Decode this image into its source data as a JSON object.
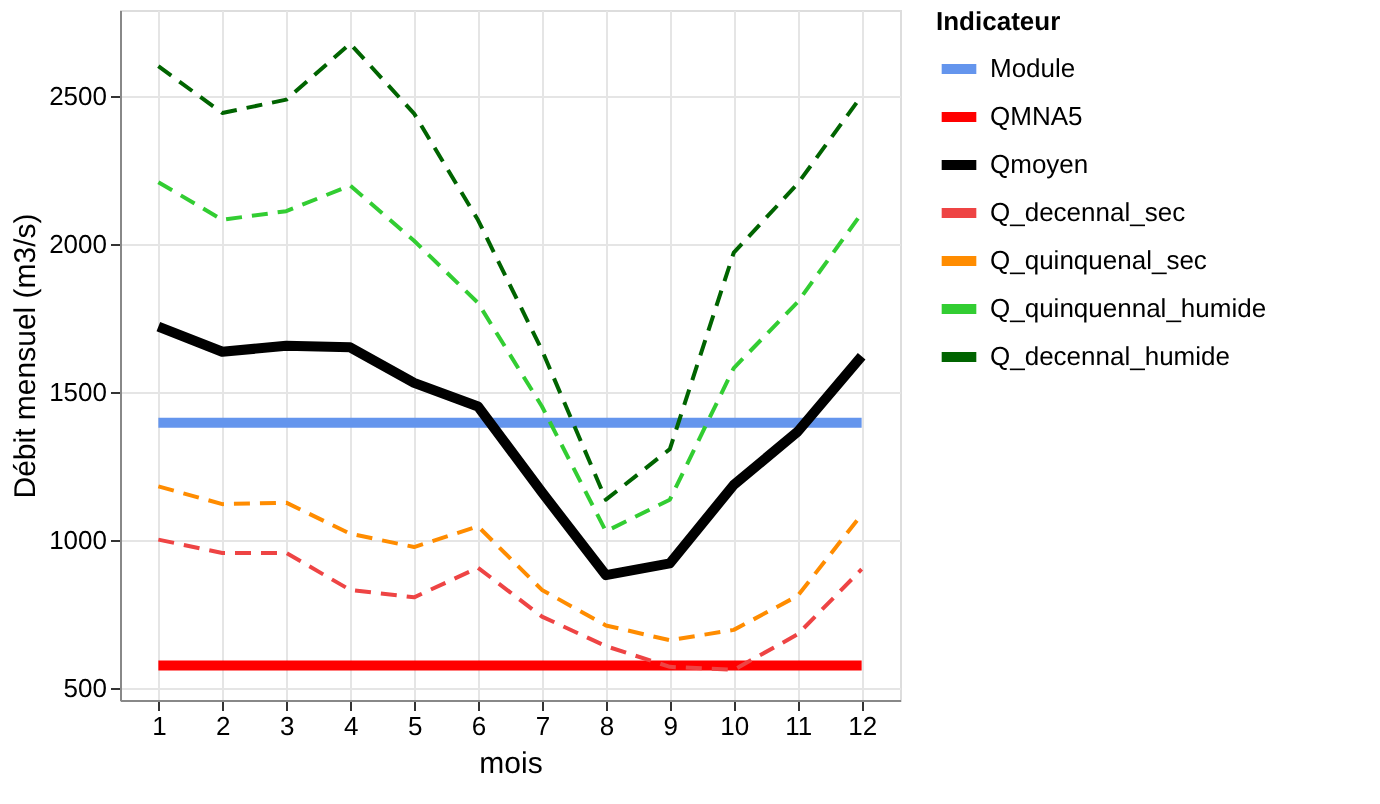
{
  "chart_data": {
    "type": "line",
    "xlabel": "mois",
    "ylabel": "Débit mensuel (m3/s)",
    "legend_title": "Indicateur",
    "legend": "right",
    "grid": true,
    "x": [
      1,
      2,
      3,
      4,
      5,
      6,
      7,
      8,
      9,
      10,
      11,
      12
    ],
    "xlim": [
      0.4,
      12.6
    ],
    "xticks": [
      1,
      2,
      3,
      4,
      5,
      6,
      7,
      8,
      9,
      10,
      11,
      12
    ],
    "ylim": [
      458,
      2790
    ],
    "yticks": [
      500,
      1000,
      1500,
      2000,
      2500
    ],
    "series": [
      {
        "name": "Module",
        "color": "#6495ed",
        "line_style": "solid",
        "values": [
          1395,
          1395,
          1395,
          1395,
          1395,
          1395,
          1395,
          1395,
          1395,
          1395,
          1395,
          1395
        ]
      },
      {
        "name": "QMNA5",
        "color": "#ff0000",
        "line_style": "solid",
        "values": [
          575,
          575,
          575,
          575,
          575,
          575,
          575,
          575,
          575,
          575,
          575,
          575
        ]
      },
      {
        "name": "Qmoyen",
        "color": "#000000",
        "line_style": "solid",
        "values": [
          1720,
          1635,
          1655,
          1650,
          1530,
          1450,
          1160,
          880,
          920,
          1185,
          1365,
          1620
        ]
      },
      {
        "name": "Q_decennal_sec",
        "color": "#ee4444",
        "line_style": "dashed",
        "values": [
          1000,
          955,
          955,
          830,
          805,
          905,
          740,
          640,
          570,
          560,
          680,
          900
        ]
      },
      {
        "name": "Q_quinquenal_sec",
        "color": "#ff8c00",
        "line_style": "dashed",
        "values": [
          1180,
          1120,
          1125,
          1020,
          975,
          1045,
          830,
          710,
          660,
          695,
          810,
          1085
        ]
      },
      {
        "name": "Q_quinquennal_humide",
        "color": "#32cd32",
        "line_style": "dashed",
        "values": [
          2208,
          2081,
          2110,
          2197,
          2010,
          1800,
          1450,
          1028,
          1135,
          1580,
          1803,
          2103
        ]
      },
      {
        "name": "Q_decennal_humide",
        "color": "#006400",
        "line_style": "dashed",
        "values": [
          2600,
          2442,
          2487,
          2676,
          2440,
          2080,
          1640,
          1135,
          1306,
          1970,
          2203,
          2500
        ]
      }
    ]
  }
}
